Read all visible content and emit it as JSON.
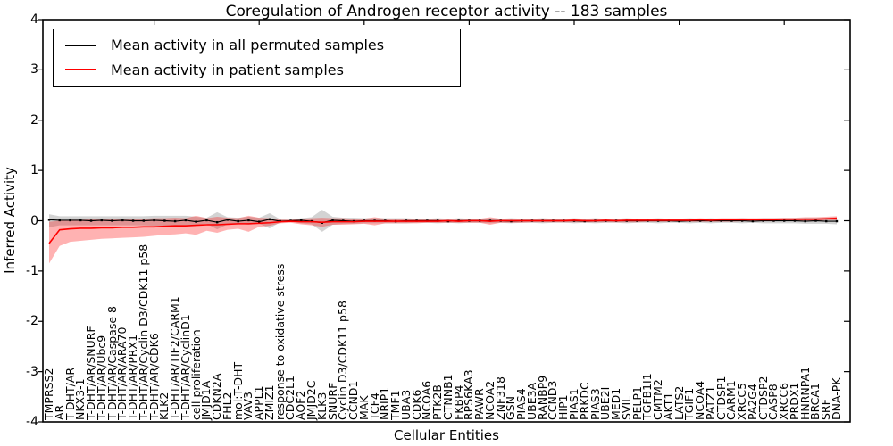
{
  "figure": {
    "title": "Coregulation of Androgen receptor activity -- 183 samples",
    "xlabel": "Cellular Entities",
    "ylabel": "Inferred Activity"
  },
  "legend": {
    "entries": [
      {
        "label": "Mean activity in all permuted samples",
        "color": "#000000"
      },
      {
        "label": "Mean activity in patient samples",
        "color": "#ff0000"
      }
    ]
  },
  "chart_data": {
    "type": "line",
    "title": "Coregulation of Androgen receptor activity -- 183 samples",
    "xlabel": "Cellular Entities",
    "ylabel": "Inferred Activity",
    "ylim": [
      -4,
      4
    ],
    "yticks": [
      "4",
      "3",
      "2",
      "1",
      "0",
      "-1",
      "-2",
      "-3",
      "-4"
    ],
    "grid": false,
    "legend_position": "upper left",
    "categories": [
      "TMPRSS2",
      "AR",
      "T-DHT/AR",
      "NKX3-1",
      "T-DHT/AR/SNURF",
      "T-DHT/AR/Ubc9",
      "T-DHT/AR/Caspase 8",
      "T-DHT/AR/ARA70",
      "T-DHT/AR/PRX1",
      "T-DHT/AR/Cyclin D3/CDK11 p58",
      "T-DHT/AR/CDK6",
      "KLK2",
      "T-DHT/AR/TIF2/CARM1",
      "T-DHT/AR/CyclinD1",
      "cell proliferation",
      "JMJD1A",
      "CDKN2A",
      "FHL2",
      "mol:T-DHT",
      "VAV3",
      "APPL1",
      "ZMIZ1",
      "response to oxidative stress",
      "CDC2L1",
      "AOF2",
      "JMJD2C",
      "KLK3",
      "SNURF",
      "Cyclin D3/CDK11 p58",
      "CCND1",
      "MAK",
      "TCF4",
      "NRIP1",
      "TMF1",
      "UBA3",
      "CDK6",
      "NCOA6",
      "PTK2B",
      "CTNNB1",
      "FKBP4",
      "RPS6KA3",
      "PAWR",
      "NCOA2",
      "ZNF318",
      "GSN",
      "PIAS4",
      "UBE3A",
      "RANBP9",
      "CCND3",
      "HIP1",
      "PIAS1",
      "PRKDC",
      "PIAS3",
      "UBE2I",
      "MED1",
      "SVIL",
      "PELP1",
      "TGFB1I1",
      "CMTM2",
      "AKT1",
      "LATS2",
      "TGIF1",
      "NCOA4",
      "PATZ1",
      "CTDSP1",
      "CARM1",
      "XRCC5",
      "PA2G4",
      "CTDSP2",
      "CASP8",
      "XRCC6",
      "PRDX1",
      "HNRNPA1",
      "BRCA1",
      "SRF",
      "DNA-PK"
    ],
    "series": [
      {
        "name": "Mean activity in all permuted samples",
        "color": "#000000",
        "band_color": "#808080",
        "band_opacity": 0.35,
        "marker": "square",
        "mean": [
          0.02,
          0.01,
          0.01,
          0.01,
          0.0,
          0.01,
          0.0,
          0.01,
          0.0,
          0.0,
          0.01,
          0.0,
          -0.01,
          0.01,
          -0.02,
          0.01,
          -0.03,
          0.02,
          -0.01,
          0.01,
          -0.02,
          0.03,
          -0.01,
          0.0,
          0.01,
          -0.01,
          -0.04,
          0.01,
          0.0,
          -0.01,
          0.0,
          0.0,
          0.0,
          -0.01,
          0.0,
          0.0,
          0.0,
          0.0,
          -0.01,
          0.0,
          0.0,
          0.0,
          0.0,
          0.0,
          -0.01,
          0.0,
          0.0,
          0.0,
          0.0,
          0.0,
          0.0,
          -0.01,
          0.0,
          0.0,
          0.0,
          0.0,
          0.0,
          0.0,
          0.0,
          0.0,
          -0.01,
          0.0,
          0.0,
          0.0,
          0.0,
          0.0,
          0.0,
          -0.01,
          0.0,
          0.0,
          0.0,
          0.0,
          -0.01,
          0.0,
          -0.01,
          -0.01
        ],
        "lower": [
          -0.13,
          -0.09,
          -0.09,
          -0.09,
          -0.09,
          -0.09,
          -0.09,
          -0.09,
          -0.09,
          -0.09,
          -0.1,
          -0.1,
          -0.1,
          -0.1,
          -0.08,
          -0.06,
          -0.17,
          -0.07,
          -0.06,
          -0.08,
          -0.06,
          -0.15,
          -0.03,
          -0.02,
          -0.05,
          -0.07,
          -0.22,
          -0.08,
          -0.06,
          -0.06,
          -0.05,
          -0.05,
          -0.05,
          -0.05,
          -0.05,
          -0.04,
          -0.04,
          -0.05,
          -0.04,
          -0.05,
          -0.04,
          -0.04,
          -0.05,
          -0.04,
          -0.05,
          -0.04,
          -0.04,
          -0.05,
          -0.04,
          -0.04,
          -0.05,
          -0.04,
          -0.05,
          -0.04,
          -0.04,
          -0.05,
          -0.04,
          -0.04,
          -0.05,
          -0.04,
          -0.04,
          -0.05,
          -0.04,
          -0.05,
          -0.04,
          -0.04,
          -0.05,
          -0.04,
          -0.05,
          -0.05,
          -0.05,
          -0.05,
          -0.06,
          -0.06,
          -0.06,
          -0.07
        ],
        "upper": [
          0.13,
          0.09,
          0.09,
          0.09,
          0.09,
          0.09,
          0.09,
          0.09,
          0.09,
          0.09,
          0.1,
          0.1,
          0.1,
          0.1,
          0.08,
          0.06,
          0.17,
          0.07,
          0.06,
          0.08,
          0.06,
          0.15,
          0.03,
          0.02,
          0.05,
          0.07,
          0.22,
          0.08,
          0.06,
          0.06,
          0.05,
          0.05,
          0.05,
          0.05,
          0.05,
          0.04,
          0.04,
          0.05,
          0.04,
          0.05,
          0.04,
          0.04,
          0.05,
          0.04,
          0.05,
          0.04,
          0.04,
          0.05,
          0.04,
          0.04,
          0.05,
          0.04,
          0.05,
          0.04,
          0.04,
          0.05,
          0.04,
          0.04,
          0.05,
          0.04,
          0.04,
          0.05,
          0.04,
          0.05,
          0.04,
          0.04,
          0.05,
          0.04,
          0.05,
          0.05,
          0.05,
          0.05,
          0.06,
          0.06,
          0.06,
          0.07
        ]
      },
      {
        "name": "Mean activity in patient samples",
        "color": "#ff0000",
        "band_color": "#ff0000",
        "band_opacity": 0.3,
        "marker": "none",
        "mean": [
          -0.45,
          -0.18,
          -0.16,
          -0.15,
          -0.15,
          -0.14,
          -0.14,
          -0.13,
          -0.13,
          -0.12,
          -0.12,
          -0.11,
          -0.1,
          -0.1,
          -0.09,
          -0.08,
          -0.08,
          -0.07,
          -0.06,
          -0.06,
          -0.05,
          -0.04,
          -0.02,
          -0.01,
          -0.02,
          -0.02,
          -0.03,
          -0.02,
          -0.02,
          -0.02,
          -0.01,
          -0.01,
          -0.01,
          -0.01,
          -0.01,
          -0.01,
          -0.01,
          -0.01,
          0.0,
          -0.01,
          0.0,
          0.0,
          -0.01,
          0.0,
          0.0,
          0.0,
          0.0,
          0.0,
          0.0,
          0.0,
          0.01,
          0.0,
          0.0,
          0.01,
          0.0,
          0.01,
          0.01,
          0.01,
          0.01,
          0.01,
          0.01,
          0.01,
          0.02,
          0.01,
          0.02,
          0.02,
          0.02,
          0.02,
          0.02,
          0.02,
          0.03,
          0.03,
          0.03,
          0.03,
          0.04,
          0.05
        ],
        "lower": [
          -0.85,
          -0.5,
          -0.42,
          -0.4,
          -0.38,
          -0.36,
          -0.35,
          -0.34,
          -0.33,
          -0.32,
          -0.3,
          -0.28,
          -0.27,
          -0.25,
          -0.28,
          -0.2,
          -0.24,
          -0.18,
          -0.16,
          -0.22,
          -0.12,
          -0.1,
          -0.05,
          -0.04,
          -0.07,
          -0.09,
          -0.12,
          -0.08,
          -0.08,
          -0.07,
          -0.06,
          -0.09,
          -0.05,
          -0.05,
          -0.05,
          -0.05,
          -0.04,
          -0.04,
          -0.04,
          -0.04,
          -0.04,
          -0.04,
          -0.08,
          -0.04,
          -0.04,
          -0.04,
          -0.03,
          -0.03,
          -0.03,
          -0.03,
          -0.03,
          -0.03,
          -0.03,
          -0.03,
          -0.03,
          -0.03,
          -0.03,
          -0.02,
          -0.02,
          -0.02,
          -0.02,
          -0.02,
          -0.02,
          -0.02,
          -0.02,
          -0.02,
          -0.01,
          -0.01,
          -0.01,
          -0.01,
          -0.01,
          -0.01,
          0.0,
          0.0,
          0.01,
          0.01
        ],
        "upper": [
          -0.02,
          0.0,
          0.02,
          0.02,
          0.03,
          0.03,
          0.03,
          0.04,
          0.04,
          0.04,
          0.05,
          0.05,
          0.06,
          0.05,
          0.1,
          0.05,
          0.08,
          0.06,
          0.05,
          0.1,
          0.06,
          0.05,
          0.02,
          0.02,
          0.04,
          0.05,
          0.06,
          0.05,
          0.05,
          0.04,
          0.04,
          0.07,
          0.04,
          0.04,
          0.04,
          0.04,
          0.03,
          0.03,
          0.04,
          0.03,
          0.04,
          0.04,
          0.07,
          0.04,
          0.04,
          0.04,
          0.03,
          0.03,
          0.04,
          0.03,
          0.04,
          0.03,
          0.03,
          0.04,
          0.03,
          0.04,
          0.04,
          0.04,
          0.04,
          0.04,
          0.04,
          0.04,
          0.05,
          0.04,
          0.05,
          0.05,
          0.05,
          0.05,
          0.05,
          0.05,
          0.06,
          0.06,
          0.07,
          0.07,
          0.08,
          0.09
        ]
      }
    ]
  }
}
